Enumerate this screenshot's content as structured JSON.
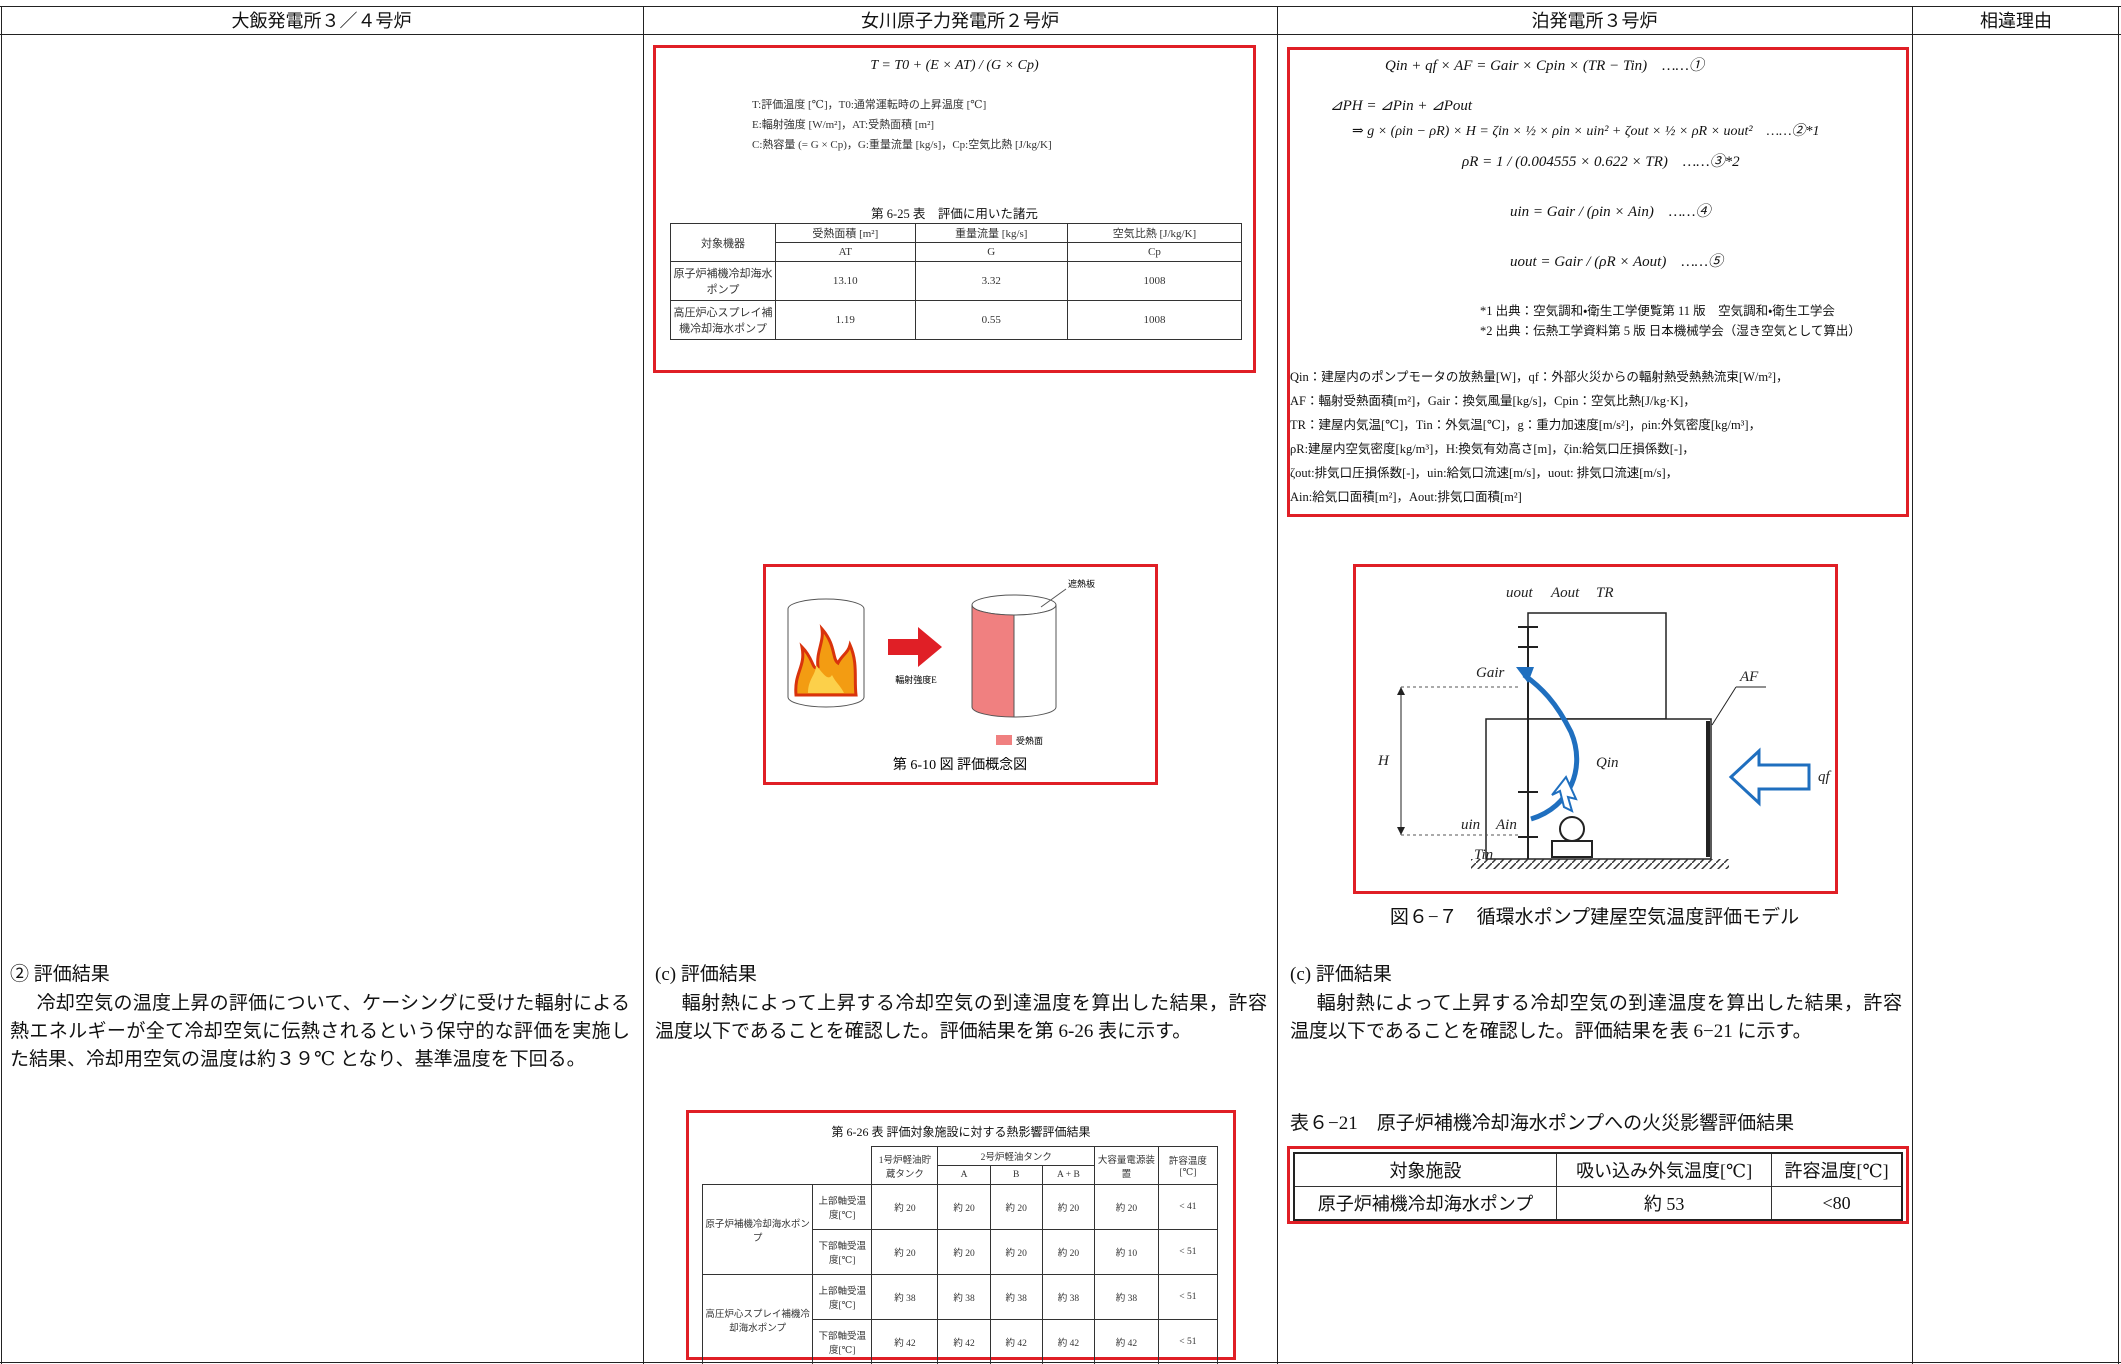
{
  "header": {
    "columns": [
      "大飯発電所３／４号炉",
      "女川原子力発電所２号炉",
      "泊発電所３号炉",
      "相違理由"
    ]
  },
  "ohi": {
    "heading": "② 評価結果",
    "paragraph": "冷却空気の温度上昇の評価について、ケーシングに受けた輻射による熱エネルギーが全て冷却空気に伝熱されるという保守的な評価を実施した結果、冷却用空気の温度は約３９℃ となり、基準温度を下回る。"
  },
  "onagawa": {
    "formula": {
      "equation": "T = T0 + (E × AT) / (G × Cp)",
      "legend": [
        "T:評価温度 [℃]，T0:通常運転時の上昇温度 [℃]",
        "E:輻射強度 [W/m²]，AT:受熱面積 [m²]",
        "C:熱容量 (= G × Cp)，G:重量流量 [kg/s]，Cp:空気比熱 [J/kg/K]"
      ]
    },
    "spec_table": {
      "caption": "第 6-25 表　評価に用いた諸元",
      "header": [
        "対象機器",
        "受熱面積 [m²]",
        "重量流量 [kg/s]",
        "空気比熱 [J/kg/K]"
      ],
      "subheader": [
        "AT",
        "G",
        "Cp"
      ],
      "rows": [
        [
          "原子炉補機冷却海水ポンプ",
          "13.10",
          "3.32",
          "1008"
        ],
        [
          "高圧炉心スプレイ補機冷却海水ポンプ",
          "1.19",
          "0.55",
          "1008"
        ]
      ]
    },
    "figure": {
      "shield": "遮熱板",
      "intensity": "輻射強度E",
      "surface": "受熱面",
      "caption": "第 6-10 図 評価概念図"
    },
    "result": {
      "heading": "(c) 評価結果",
      "paragraph": "輻射熱によって上昇する冷却空気の到達温度を算出した結果，許容温度以下であることを確認した。評価結果を第 6-26 表に示す。"
    },
    "result_table": {
      "caption": "第 6-26 表 評価対象施設に対する熱影響評価結果",
      "header_top": [
        "1号炉軽油貯蔵タンク",
        "2号炉軽油タンク",
        "大容量電源装置",
        "許容温度[℃]"
      ],
      "header_sub": [
        "A",
        "B",
        "A + B"
      ],
      "groups": [
        {
          "name": "原子炉補機冷却海水ポンプ",
          "rows": [
            {
              "item": "上部軸受温度[℃]",
              "values": [
                "約 20",
                "約 20",
                "約 20",
                "約 20",
                "約 20",
                "< 41"
              ]
            },
            {
              "item": "下部軸受温度[℃]",
              "values": [
                "約 20",
                "約 20",
                "約 20",
                "約 20",
                "約 10",
                "< 51"
              ]
            }
          ]
        },
        {
          "name": "高圧炉心スプレイ補機冷却海水ポンプ",
          "rows": [
            {
              "item": "上部軸受温度[℃]",
              "values": [
                "約 38",
                "約 38",
                "約 38",
                "約 38",
                "約 38",
                "< 51"
              ]
            },
            {
              "item": "下部軸受温度[℃]",
              "values": [
                "約 42",
                "約 42",
                "約 42",
                "約 42",
                "約 42",
                "< 51"
              ]
            }
          ]
        }
      ]
    }
  },
  "tomari": {
    "formula": {
      "equations": [
        "Qin + qf × AF = Gair × Cpin × (TR − Tin)　……①",
        "⊿PH = ⊿Pin + ⊿Pout",
        "⇒ g × (ρin − ρR) × H = ζin × ½ × ρin × uin² + ζout × ½ × ρR × uout²　……②*1",
        "ρR = 1 / (0.004555 × 0.622 × TR)　……③*2",
        "uin = Gair / (ρin × Ain)　……④",
        "uout = Gair / (ρR × Aout)　……⑤"
      ],
      "notes": [
        "*1 出典：空気調和・衛生工学便覧第 11 版　空気調和・衛生工学会",
        "*2 出典：伝熱工学資料第 5 版 日本機械学会（湿き空気として算出）"
      ],
      "definitions": [
        "Qin：建屋内のポンプモータの放熱量[W]，qf：外部火災からの輻射熱受熱熱流束[W/m²]，",
        "AF：輻射受熱面積[m²]，Gair：換気風量[kg/s]，Cpin：空気比熱[J/kg·K]，",
        "TR：建屋内気温[℃]，Tin：外気温[℃]，g：重力加速度[m/s²]，ρin:外気密度[kg/m³]，",
        "ρR:建屋内空気密度[kg/m³]，H:換気有効高さ[m]，ζin:給気口圧損係数[-]，",
        "ζout:排気口圧損係数[-]，uin:給気口流速[m/s]，uout: 排気口流速[m/s]，",
        "Ain:給気口面積[m²]，Aout:排気口面積[m²]"
      ]
    },
    "figure": {
      "labels": {
        "uout": "uout",
        "Aout": "Aout",
        "TR": "TR",
        "Gair": "Gair",
        "AF": "AF",
        "H": "H",
        "Qin": "Qin",
        "qf": "qf",
        "uin": "uin",
        "Ain": "Ain",
        "Tin": "Tin"
      },
      "caption": "図６−７　循環水ポンプ建屋空気温度評価モデル"
    },
    "result": {
      "heading": "(c) 評価結果",
      "paragraph": "輻射熱によって上昇する冷却空気の到達温度を算出した結果，許容温度以下であることを確認した。評価結果を表 6−21 に示す。"
    },
    "result_table": {
      "caption": "表６−21　原子炉補機冷却海水ポンプへの火災影響評価結果",
      "header": [
        "対象施設",
        "吸い込み外気温度[℃]",
        "許容温度[℃]"
      ],
      "rows": [
        [
          "原子炉補機冷却海水ポンプ",
          "約 53",
          "<80"
        ]
      ]
    }
  }
}
